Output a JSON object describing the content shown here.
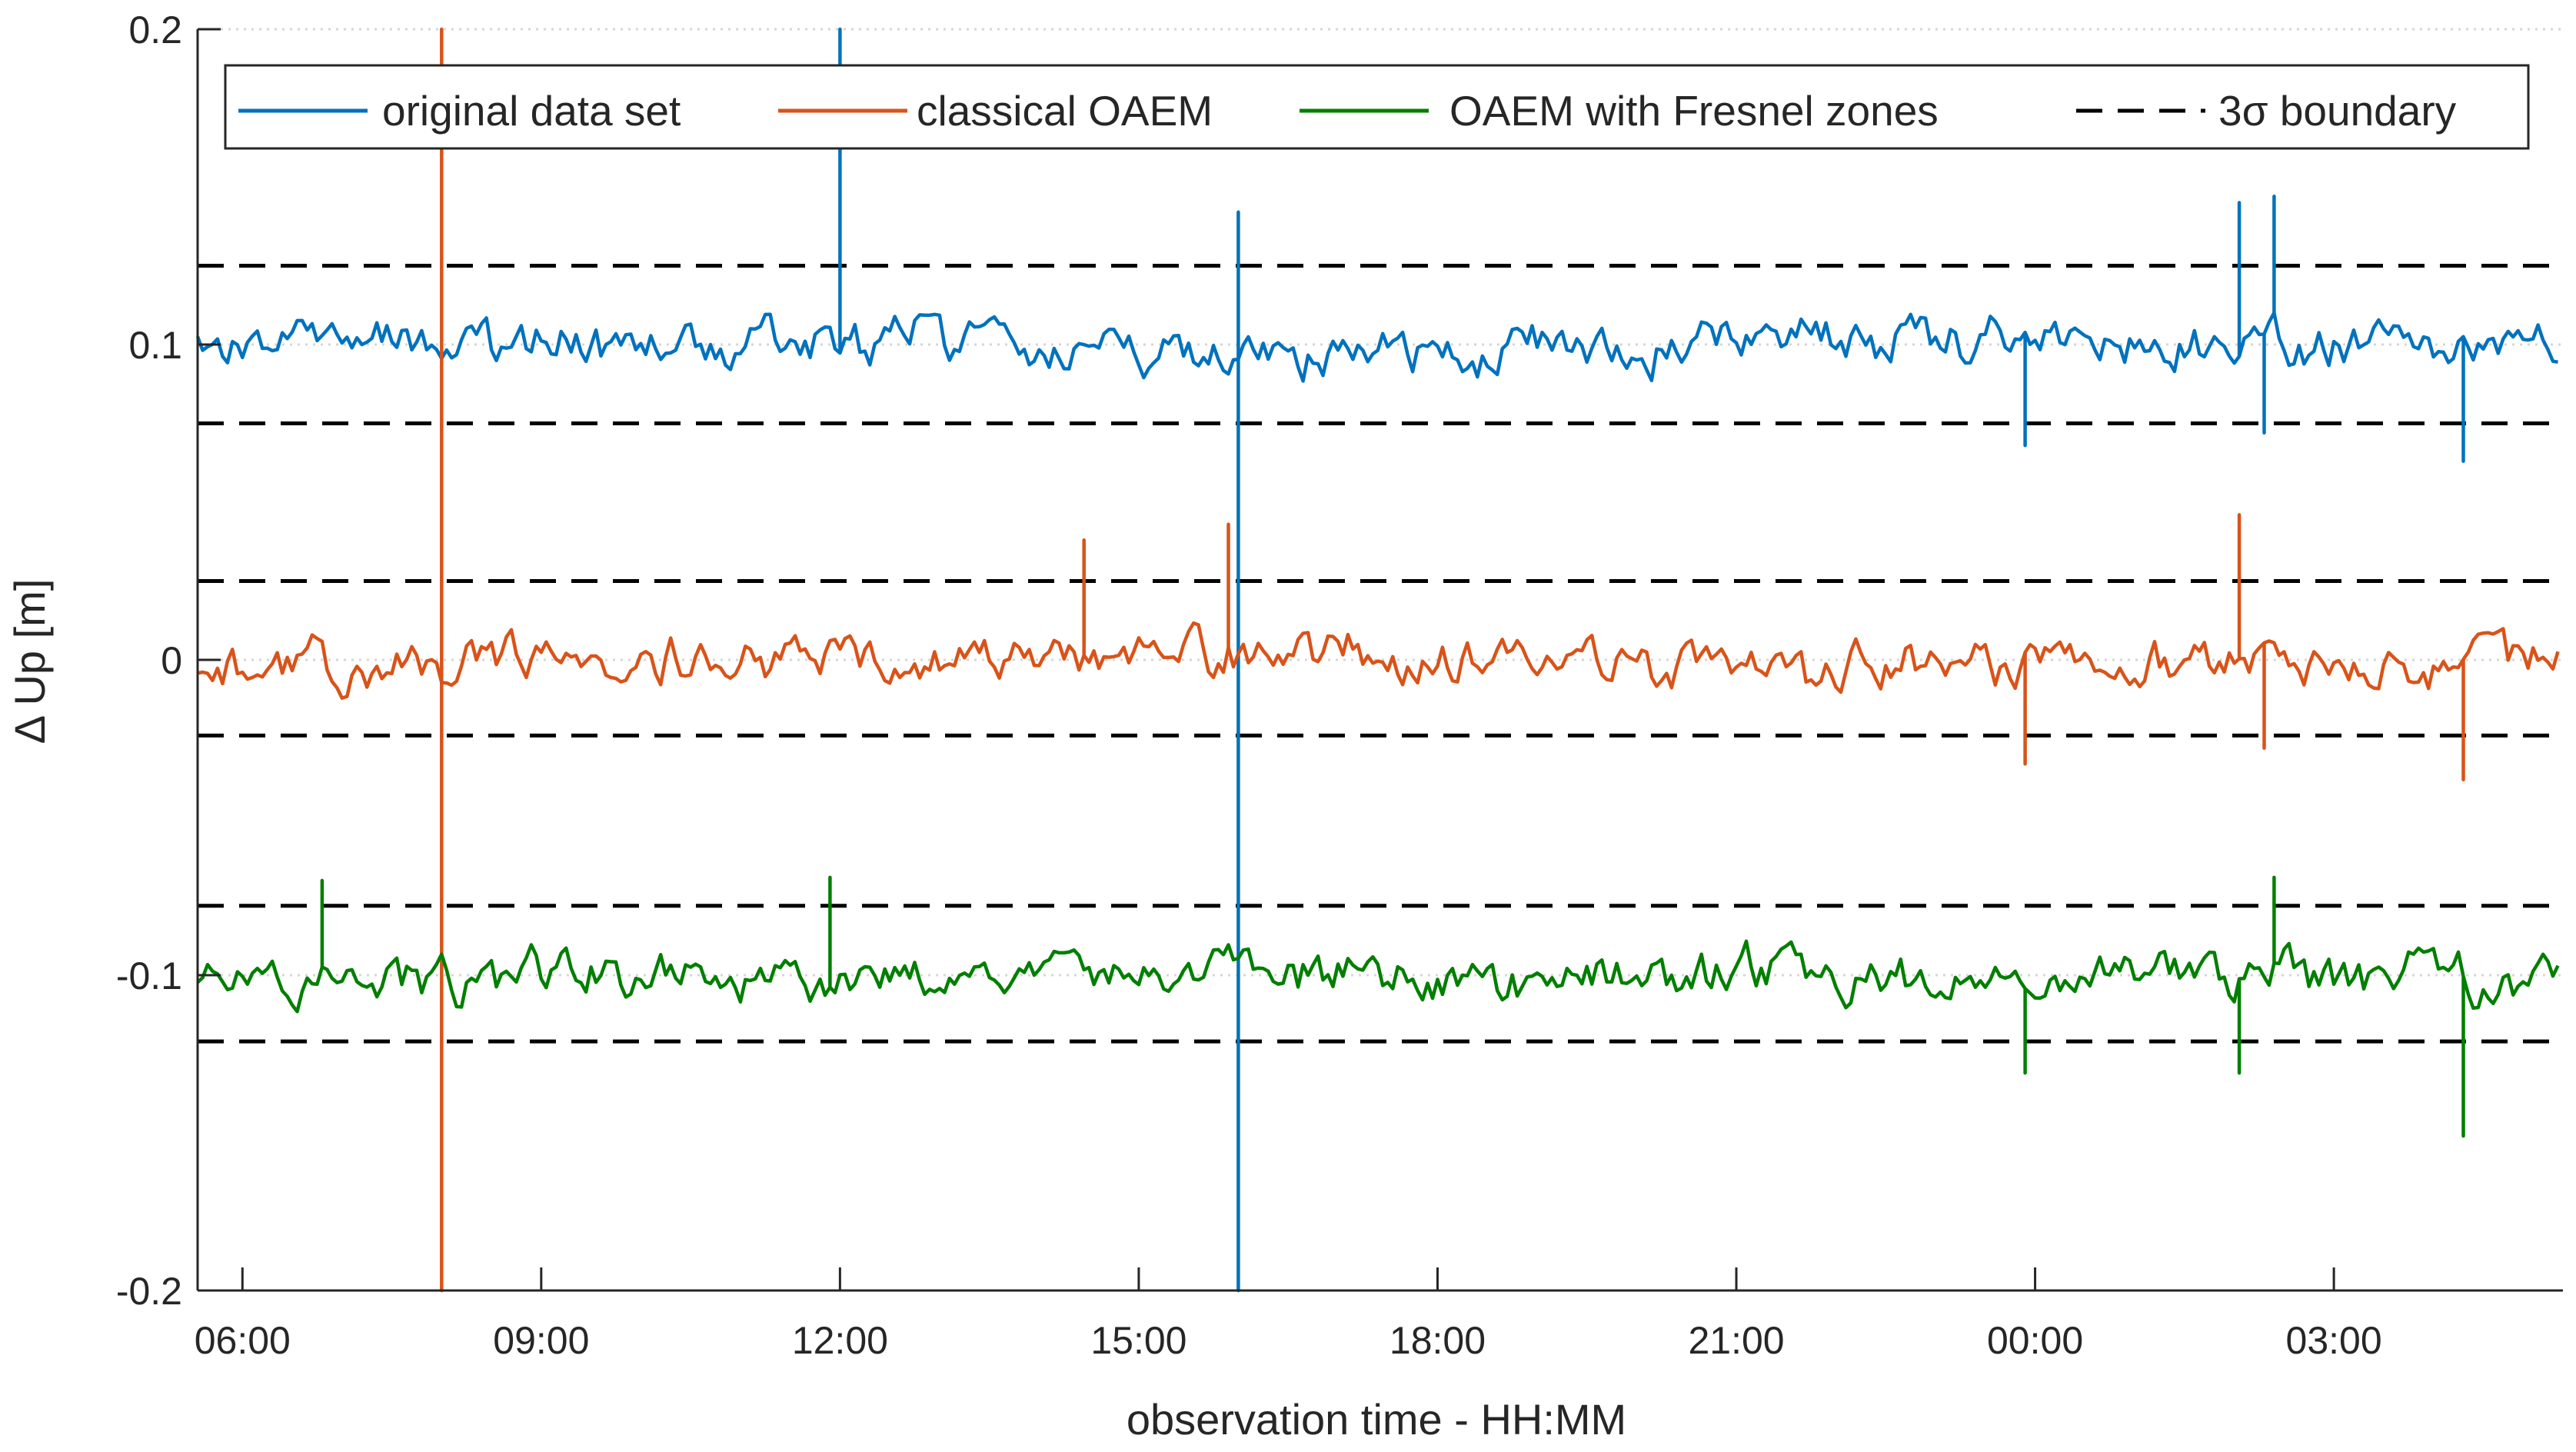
{
  "chart_data": {
    "type": "line",
    "title": "",
    "xlabel": "observation time - HH:MM",
    "ylabel": "Δ Up [m]",
    "ylim": [
      -0.2,
      0.2
    ],
    "xlim_hours": [
      5.55,
      29.3
    ],
    "x_unit": "hours since 00:00 of day 1",
    "x_ticks": [
      {
        "hour": 6,
        "label": "06:00"
      },
      {
        "hour": 9,
        "label": "09:00"
      },
      {
        "hour": 12,
        "label": "12:00"
      },
      {
        "hour": 15,
        "label": "15:00"
      },
      {
        "hour": 18,
        "label": "18:00"
      },
      {
        "hour": 21,
        "label": "21:00"
      },
      {
        "hour": 24,
        "label": "00:00"
      },
      {
        "hour": 27,
        "label": "03:00"
      }
    ],
    "y_ticks": [
      {
        "value": 0.2,
        "label": "0.2"
      },
      {
        "value": 0.1,
        "label": "0.1"
      },
      {
        "value": 0,
        "label": "0"
      },
      {
        "value": -0.1,
        "label": "-0.1"
      },
      {
        "value": -0.2,
        "label": "-0.2"
      }
    ],
    "grid": "dotted horizontal at y ticks",
    "legend": {
      "placement": "top",
      "entries": [
        {
          "label": "original data set",
          "color": "#0072BD",
          "style": "solid"
        },
        {
          "label": "classical OAEM",
          "color": "#D95319",
          "style": "solid"
        },
        {
          "label": "OAEM with Fresnel zones",
          "color": "#007F00",
          "style": "solid"
        },
        {
          "label": "3σ boundary",
          "color": "#000000",
          "style": "dashed"
        }
      ]
    },
    "series": [
      {
        "name": "original data set",
        "color": "#0072BD",
        "offset": 0.1,
        "noise_amplitude": 0.008,
        "sample_minutes": 3,
        "seed": 11,
        "spikes": [
          {
            "hour": 12.0,
            "value": 0.2
          },
          {
            "hour": 16.0,
            "value": -0.2
          },
          {
            "hour": 16.0,
            "value": 0.142
          },
          {
            "hour": 26.4,
            "value": 0.147
          },
          {
            "hour": 26.05,
            "value": 0.145
          },
          {
            "hour": 23.9,
            "value": 0.068
          },
          {
            "hour": 28.3,
            "value": 0.063
          },
          {
            "hour": 26.3,
            "value": 0.072
          }
        ]
      },
      {
        "name": "classical OAEM",
        "color": "#D95319",
        "offset": 0.0,
        "noise_amplitude": 0.008,
        "sample_minutes": 3,
        "seed": 23,
        "spikes": [
          {
            "hour": 8.0,
            "value": 0.2
          },
          {
            "hour": 8.0,
            "value": -0.2
          },
          {
            "hour": 14.45,
            "value": 0.038
          },
          {
            "hour": 15.9,
            "value": 0.043
          },
          {
            "hour": 26.05,
            "value": 0.046
          },
          {
            "hour": 28.3,
            "value": -0.038
          },
          {
            "hour": 23.9,
            "value": -0.033
          },
          {
            "hour": 26.3,
            "value": -0.028
          }
        ]
      },
      {
        "name": "OAEM with Fresnel zones",
        "color": "#007F00",
        "offset": -0.1,
        "noise_amplitude": 0.008,
        "sample_minutes": 3,
        "seed": 37,
        "spikes": [
          {
            "hour": 6.8,
            "value": -0.07
          },
          {
            "hour": 11.9,
            "value": -0.069
          },
          {
            "hour": 26.4,
            "value": -0.069
          },
          {
            "hour": 28.3,
            "value": -0.151
          },
          {
            "hour": 23.9,
            "value": -0.131
          },
          {
            "hour": 26.05,
            "value": -0.131
          }
        ]
      }
    ],
    "boundaries": [
      {
        "series": "original data set",
        "upper": 0.125,
        "lower": 0.075
      },
      {
        "series": "classical OAEM",
        "upper": 0.025,
        "lower": -0.024
      },
      {
        "series": "OAEM with Fresnel zones",
        "upper": -0.078,
        "lower": -0.121
      }
    ]
  }
}
